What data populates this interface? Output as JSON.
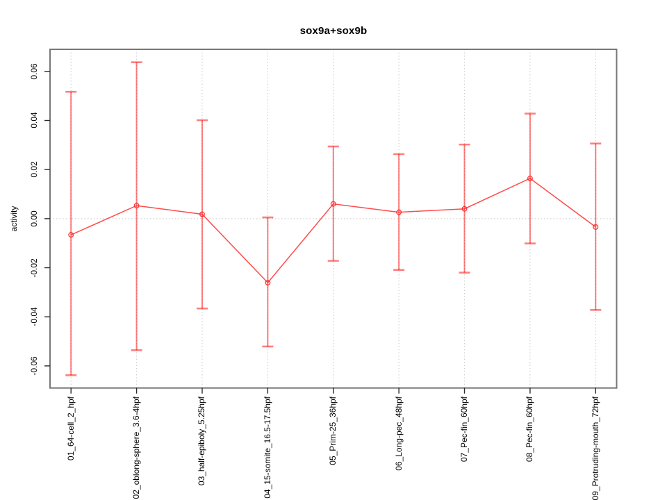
{
  "title": "sox9a+sox9b",
  "chart_data": {
    "type": "line",
    "title": "sox9a+sox9b",
    "xlabel": "",
    "ylabel": "activity",
    "categories": [
      "01_64-cell_2_hpf",
      "02_oblong-sphere_3.6-4hpf",
      "03_half-epiboly_5.25hpf",
      "04_15-somite_16.5-17.5hpf",
      "05_Prim-25_36hpf",
      "06_Long-pec_48hpf",
      "07_Pec-fin_60hpf",
      "08_Pec-fin_60hpf",
      "09_Protruding-mouth_72hpf"
    ],
    "series": [
      {
        "name": "activity",
        "values": [
          -0.0066,
          0.0053,
          0.0018,
          -0.0261,
          0.006,
          0.0026,
          0.004,
          0.0164,
          -0.0034
        ],
        "upper": [
          0.0517,
          0.0637,
          0.0401,
          0.0005,
          0.0294,
          0.0263,
          0.0302,
          0.0428,
          0.0306
        ],
        "lower": [
          -0.0638,
          -0.0536,
          -0.0366,
          -0.0521,
          -0.0172,
          -0.0209,
          -0.022,
          -0.0101,
          -0.0372
        ]
      }
    ],
    "ylim": [
      -0.069,
      0.069
    ],
    "yticks": [
      -0.06,
      -0.04,
      -0.02,
      0.0,
      0.02,
      0.04,
      0.06
    ],
    "ytick_labels": [
      "-0.06",
      "-0.04",
      "-0.02",
      "0.00",
      "0.02",
      "0.04",
      "0.06"
    ],
    "grid": "vertical dotted gridline at each category; horizontal dotted gridline at y=0 only",
    "legend": "none",
    "marker": "open-circle",
    "colors": {
      "error_bar": "rgba(255,0,0,0.5)",
      "line": "rgba(255,30,30,0.8)",
      "marker": "rgba(255,30,30,0.85)",
      "gridline": "#d0d0d0",
      "box_border": "#777777",
      "tick": "#2a2a2a",
      "text": "#000000"
    }
  }
}
